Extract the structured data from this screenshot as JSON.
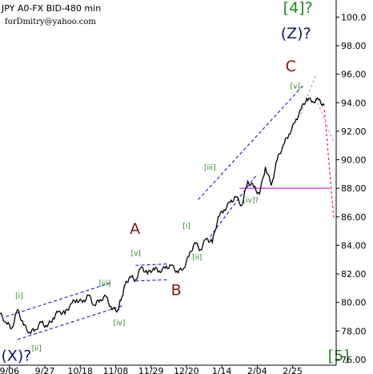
{
  "header": {
    "symbol_line": "JPY A0-FX BID-480 min",
    "author_line": "forDmitry@yahoo.com"
  },
  "colors": {
    "price": "#000000",
    "channel": "#0000cc",
    "target_line": "#dd22dd",
    "forecast_red": "#ee2222",
    "forecast_gray": "#aaaaaa",
    "green_label": "#228822",
    "dark_red_label": "#881111",
    "navy_label": "#111177"
  },
  "chart_data": {
    "type": "line",
    "title": "",
    "xlabel": "",
    "ylabel": "",
    "x_ticks": [
      "9/06",
      "9/27",
      "10/18",
      "11/08",
      "11/29",
      "12/20",
      "1/14",
      "2/04",
      "2/25"
    ],
    "y_ticks": [
      "76.00",
      "78.00",
      "80.00",
      "82.00",
      "84.00",
      "86.00",
      "88.00",
      "90.00",
      "92.00",
      "94.00",
      "96.00",
      "98.00",
      "100.0"
    ],
    "ylim": [
      75.6,
      101.2
    ],
    "xlim": [
      0,
      28.5
    ],
    "grid": false,
    "series": [
      {
        "key": "price",
        "x": [
          0,
          0.5,
          1,
          1.5,
          2,
          2.5,
          3,
          3.5,
          4,
          4.5,
          5,
          5.5,
          6,
          6.5,
          7,
          7.5,
          8,
          8.5,
          9,
          9.5,
          10,
          10.3,
          10.6,
          11,
          11.5,
          12,
          12.5,
          13,
          13.5,
          14,
          14.5,
          15,
          15.5,
          16,
          16.5,
          17,
          17.5,
          18,
          18.5,
          19,
          19.5,
          20,
          20.5,
          21,
          21.5,
          22,
          22.5,
          23,
          23.5,
          24,
          24.5,
          25,
          25.5,
          26,
          26.5,
          27,
          27.5
        ],
        "values": [
          79.2,
          78.6,
          78.2,
          79.5,
          78.4,
          77.9,
          78.1,
          78.6,
          78.3,
          78.9,
          79.4,
          79.2,
          79.9,
          80.2,
          80.0,
          80.5,
          79.8,
          80.2,
          80.4,
          79.5,
          79.5,
          80.3,
          81.2,
          81.8,
          81.6,
          82.5,
          82.0,
          82.4,
          82.2,
          82.4,
          82.6,
          82.2,
          82.3,
          83.2,
          84.2,
          83.7,
          84.5,
          84.2,
          86.0,
          86.5,
          87.0,
          87.4,
          86.8,
          88.5,
          88.1,
          87.6,
          89.5,
          88.2,
          90.0,
          91.0,
          91.8,
          92.6,
          93.5,
          94.3,
          94.1,
          94.2,
          93.8
        ]
      },
      {
        "key": "forecast_primary",
        "x": [
          27.5,
          28.3
        ],
        "values": [
          93.5,
          85.8
        ]
      },
      {
        "key": "forecast_alternative",
        "x": [
          26.8,
          28.3
        ],
        "values": [
          94.3,
          91.2
        ]
      },
      {
        "key": "forecast_alternative",
        "x": [
          25.5,
          26.8
        ],
        "values": [
          93.2,
          96.0
        ]
      }
    ],
    "horizontal_line": {
      "y": 88.0,
      "x_start": 20.3,
      "x_end": 28.0
    },
    "channels": [
      {
        "upper": [
          [
            0.5,
            79.0
          ],
          [
            9.5,
            81.4
          ]
        ],
        "lower": [
          [
            1.5,
            77.4
          ],
          [
            10.5,
            79.8
          ]
        ]
      },
      {
        "upper": [
          [
            11.5,
            82.6
          ],
          [
            14.3,
            82.7
          ]
        ],
        "lower": [
          [
            11.5,
            81.5
          ],
          [
            14.3,
            81.6
          ]
        ]
      },
      {
        "upper": [
          [
            16.8,
            87.2
          ],
          [
            25.8,
            95.3
          ]
        ],
        "lower": [
          [
            17.8,
            84.6
          ],
          [
            21.8,
            89.0
          ]
        ]
      }
    ],
    "annotations": [
      {
        "text": "[i]",
        "x": 1.3,
        "y": 80.3,
        "style": "small"
      },
      {
        "text": "[ii]",
        "x": 2.7,
        "y": 76.6,
        "style": "small"
      },
      {
        "text": "[iii]",
        "x": 8.4,
        "y": 81.2,
        "style": "small"
      },
      {
        "text": "[iv]",
        "x": 9.6,
        "y": 78.4,
        "style": "small"
      },
      {
        "text": "[v]",
        "x": 11.1,
        "y": 83.3,
        "style": "small"
      },
      {
        "text": "[i]",
        "x": 15.5,
        "y": 85.2,
        "style": "small"
      },
      {
        "text": "[ii]",
        "x": 16.3,
        "y": 83.0,
        "style": "small"
      },
      {
        "text": "[iii]",
        "x": 17.3,
        "y": 89.3,
        "style": "small"
      },
      {
        "text": "[iv]?",
        "x": 20.6,
        "y": 87.0,
        "style": "small"
      },
      {
        "text": "[v]",
        "x": 24.6,
        "y": 95.0,
        "style": "small"
      },
      {
        "text": "A",
        "x": 11.0,
        "y": 84.8,
        "style": "big-red"
      },
      {
        "text": "B",
        "x": 14.5,
        "y": 80.5,
        "style": "big-red"
      },
      {
        "text": "C",
        "x": 24.2,
        "y": 96.2,
        "style": "big-red"
      },
      {
        "text": "(X)?",
        "x": 0.1,
        "y": 75.9,
        "style": "big-navy"
      },
      {
        "text": "(Z)?",
        "x": 23.8,
        "y": 98.5,
        "style": "big-navy"
      },
      {
        "text": "[4]?",
        "x": 24.0,
        "y": 100.3,
        "style": "big-green"
      },
      {
        "text": "[5]",
        "x": 27.8,
        "y": 75.9,
        "style": "big-green"
      }
    ]
  }
}
